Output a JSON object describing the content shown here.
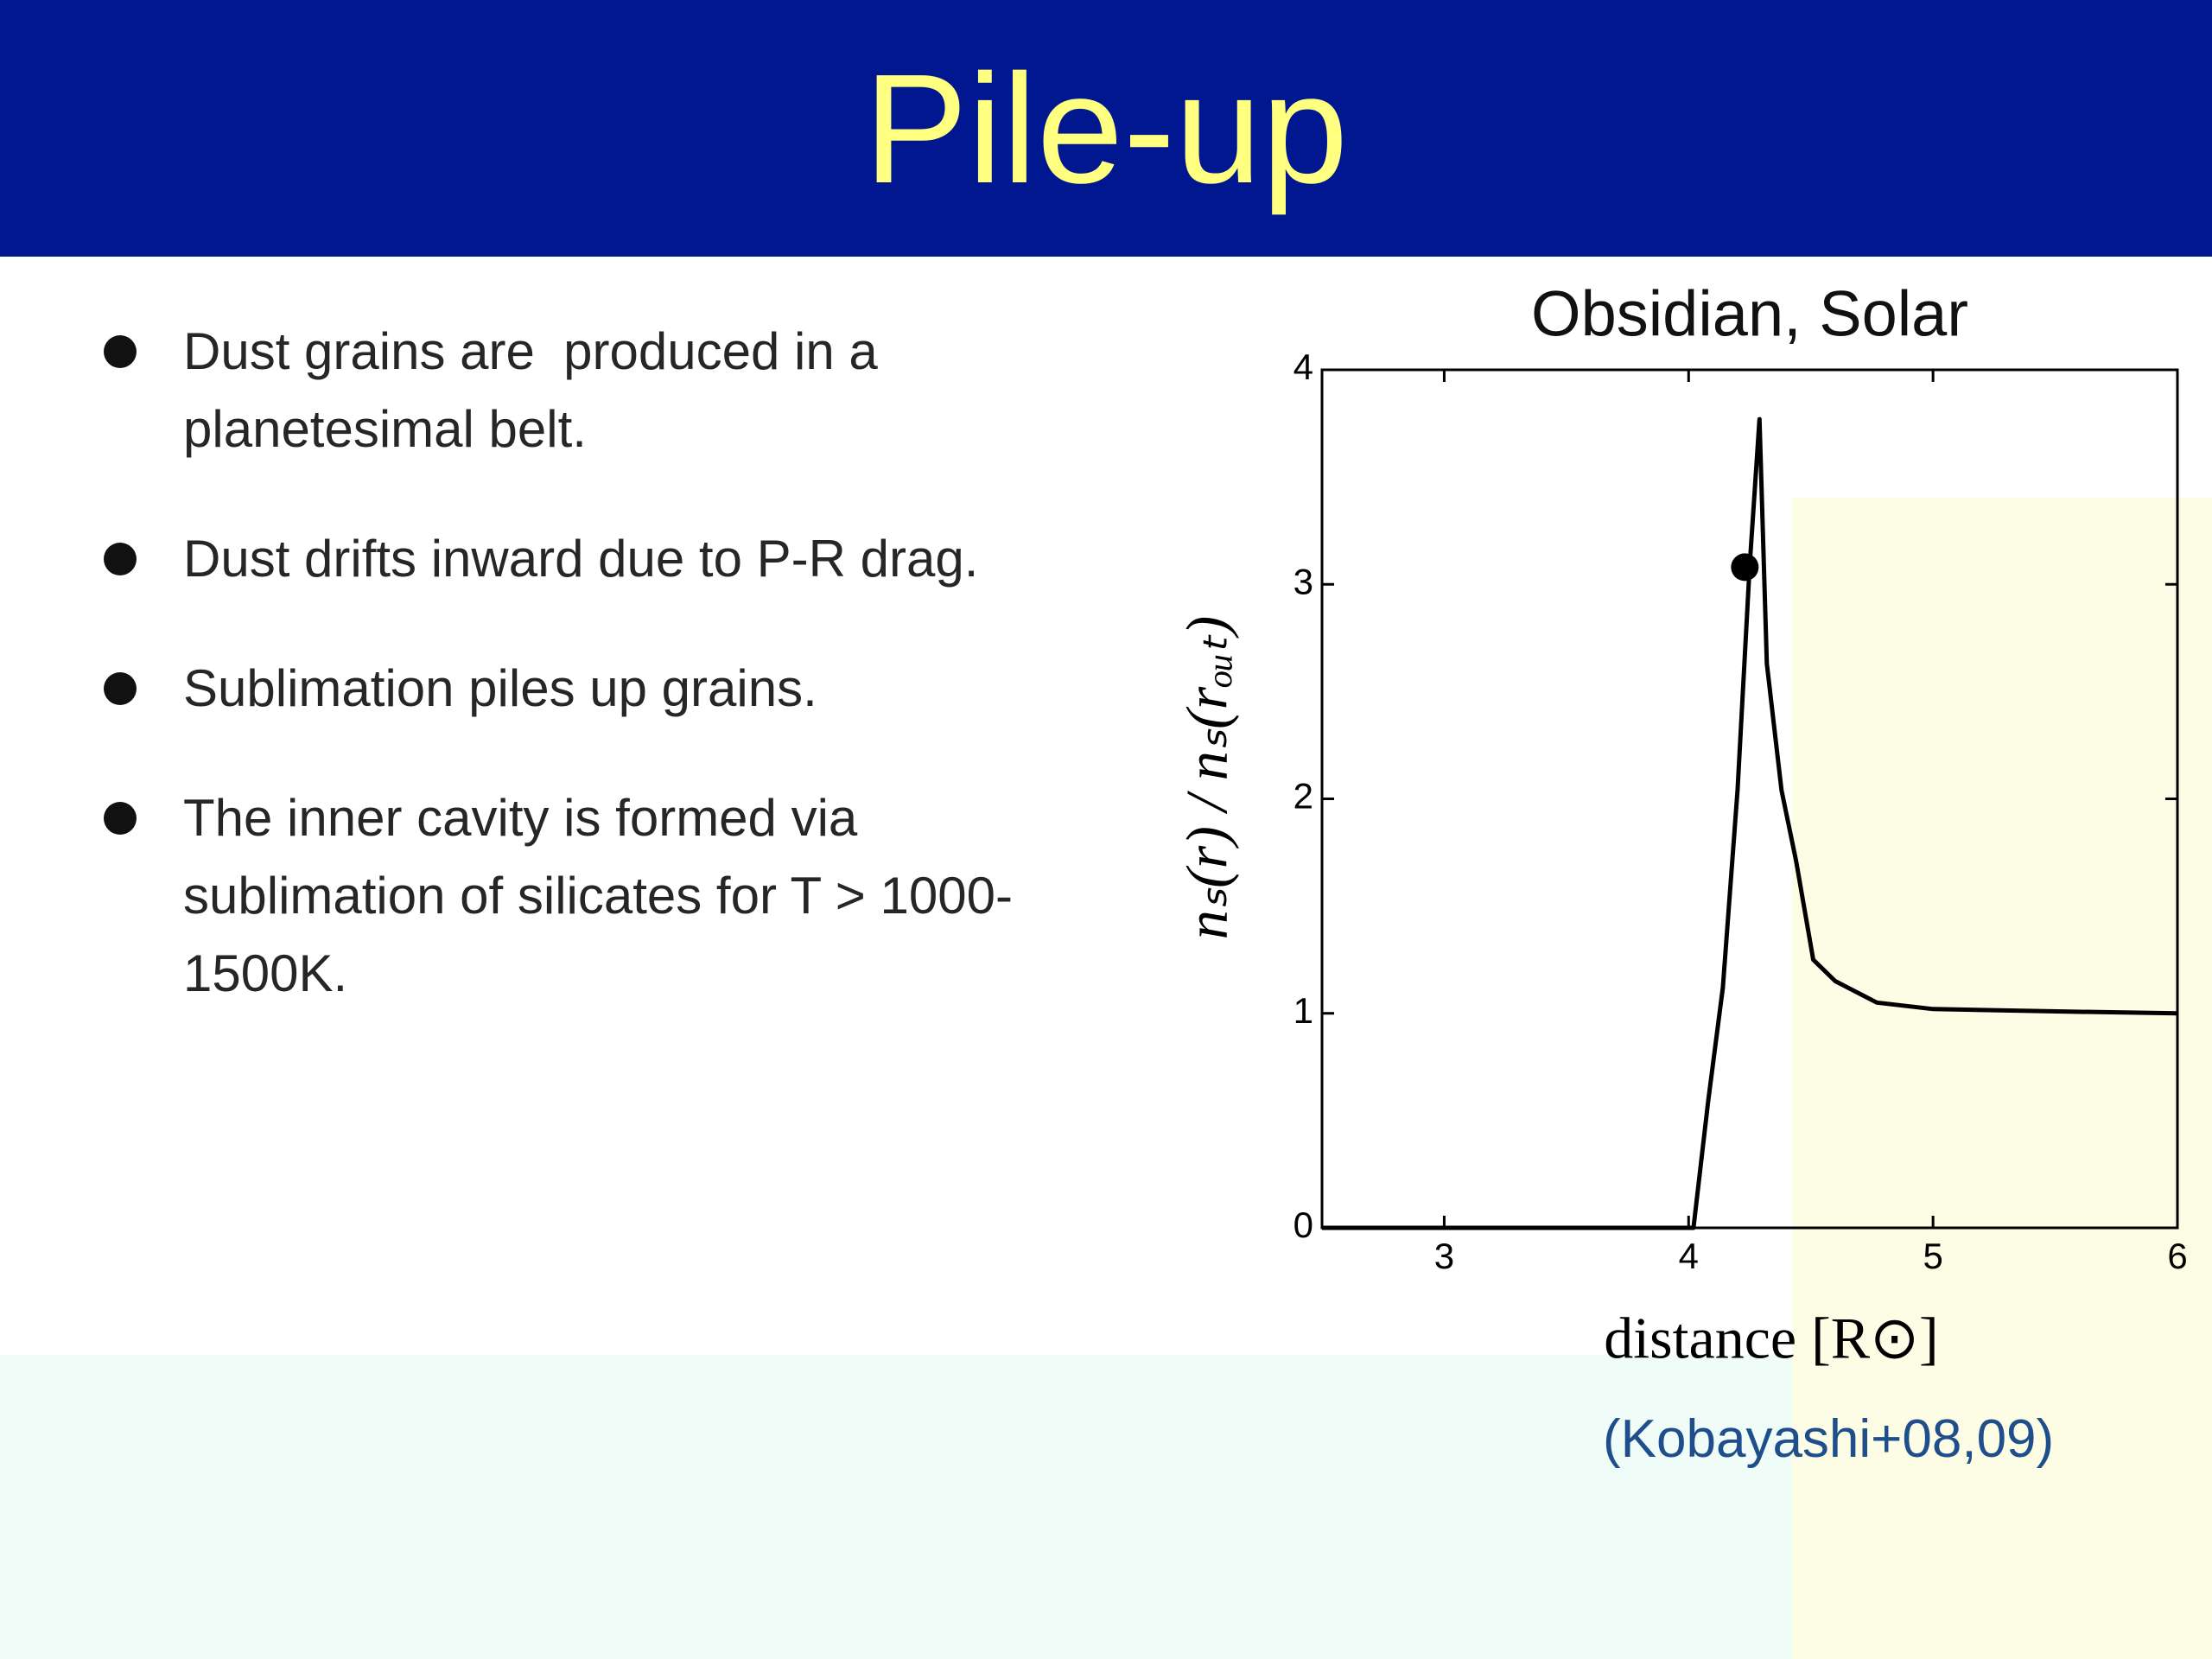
{
  "title": "Pile-up",
  "bullets": [
    [
      "Dust grains are  produced in a",
      "planetesimal belt."
    ],
    [
      "Dust drifts inward due to P-R drag."
    ],
    [
      "Sublimation piles up grains."
    ],
    [
      "The inner cavity is formed via",
      "sublimation of silicates for T > 1000-",
      "1500K."
    ]
  ],
  "citation": "(Kobayashi+08,09)",
  "chart_data": {
    "type": "line",
    "title": "Obsidian, Solar",
    "x_label": "distance [R⊙]",
    "y_label": "nₛ(r) / nₛ(rₒᵤₜ)",
    "x": [
      2.5,
      3,
      3.5,
      4.02,
      4.08,
      4.14,
      4.2,
      4.25,
      4.29,
      4.32,
      4.38,
      4.44,
      4.51,
      4.6,
      4.77,
      5,
      5.46,
      6
    ],
    "values": [
      0,
      0,
      0,
      0,
      0.59,
      1.12,
      2.04,
      3.09,
      3.77,
      2.63,
      2.04,
      1.71,
      1.25,
      1.15,
      1.05,
      1.02,
      1.01,
      1.0
    ],
    "color": "#000000",
    "point": {
      "x": 4.23,
      "y": 3.08
    },
    "xlim": [
      2.5,
      6
    ],
    "ylim": [
      0,
      4
    ],
    "xticks": [
      3,
      4,
      5,
      6
    ],
    "yticks": [
      0,
      1,
      2,
      3,
      4
    ]
  }
}
